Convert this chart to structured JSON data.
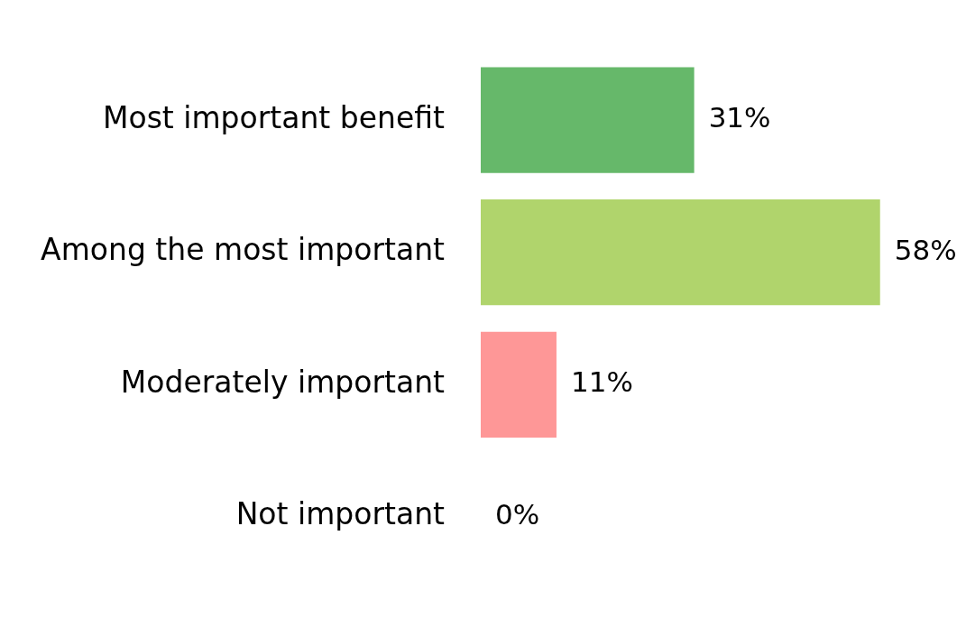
{
  "chart_data": {
    "type": "bar",
    "orientation": "horizontal",
    "categories": [
      "Most important benefit",
      "Among the most important",
      "Moderately important",
      "Not important"
    ],
    "values": [
      31,
      58,
      11,
      0
    ],
    "colors": [
      "#66b86a",
      "#b0d46c",
      "#fe9797",
      "#cccccc"
    ],
    "value_labels": [
      "31%",
      "58%",
      "11%",
      "0%"
    ],
    "legend": false,
    "tick_labels": "y"
  }
}
